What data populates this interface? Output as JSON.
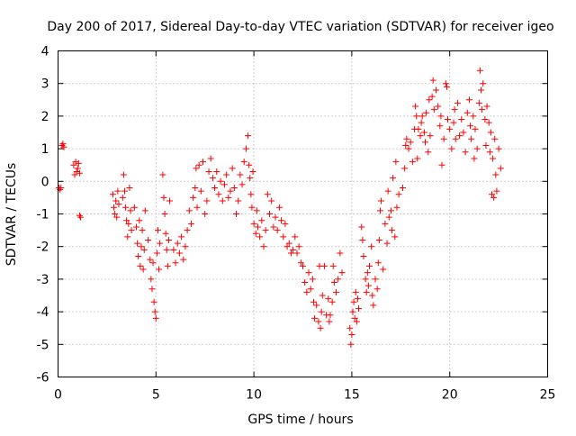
{
  "chart_data": {
    "type": "scatter",
    "title": "Day 200 of 2017, Sidereal Day-to-day VTEC variation (SDTVAR) for receiver igeo",
    "xlabel": "GPS time / hours",
    "ylabel": "SDTVAR / TECUs",
    "xlim": [
      0,
      25
    ],
    "ylim": [
      -6,
      4
    ],
    "xticks": [
      0,
      5,
      10,
      15,
      20,
      25
    ],
    "yticks": [
      -6,
      -5,
      -4,
      -3,
      -2,
      -1,
      0,
      1,
      2,
      3,
      4
    ],
    "xtick_labels": [
      "0",
      "5",
      "10",
      "15",
      "20",
      "25"
    ],
    "ytick_labels": [
      "-6",
      "-5",
      "-4",
      "-3",
      "-2",
      "-1",
      "0",
      "1",
      "2",
      "3",
      "4"
    ],
    "grid": true,
    "marker": "+",
    "color": "#ff0000",
    "series": [
      {
        "name": "igeo",
        "points": [
          [
            0.05,
            -0.2
          ],
          [
            0.1,
            -0.25
          ],
          [
            0.15,
            -0.2
          ],
          [
            0.2,
            1.1
          ],
          [
            0.25,
            1.15
          ],
          [
            0.3,
            1.05
          ],
          [
            0.8,
            0.5
          ],
          [
            0.85,
            0.2
          ],
          [
            0.9,
            0.6
          ],
          [
            0.95,
            0.3
          ],
          [
            1.0,
            0.4
          ],
          [
            1.05,
            0.55
          ],
          [
            1.1,
            0.25
          ],
          [
            1.15,
            -1.1
          ],
          [
            1.1,
            -1.05
          ],
          [
            2.8,
            -0.4
          ],
          [
            2.85,
            -0.8
          ],
          [
            2.9,
            -1.0
          ],
          [
            2.95,
            -0.6
          ],
          [
            3.0,
            -1.1
          ],
          [
            3.05,
            -0.3
          ],
          [
            3.1,
            -0.7
          ],
          [
            3.3,
            -0.5
          ],
          [
            3.35,
            0.2
          ],
          [
            3.4,
            -0.3
          ],
          [
            3.45,
            -0.8
          ],
          [
            3.5,
            -1.2
          ],
          [
            3.55,
            -1.7
          ],
          [
            3.6,
            -1.3
          ],
          [
            3.65,
            -0.2
          ],
          [
            3.7,
            -0.9
          ],
          [
            3.75,
            -1.5
          ],
          [
            3.9,
            -0.8
          ],
          [
            4.0,
            -1.4
          ],
          [
            4.05,
            -1.9
          ],
          [
            4.1,
            -2.3
          ],
          [
            4.15,
            -1.2
          ],
          [
            4.2,
            -2.6
          ],
          [
            4.25,
            -2.0
          ],
          [
            4.3,
            -1.5
          ],
          [
            4.35,
            -2.7
          ],
          [
            4.4,
            -2.1
          ],
          [
            4.45,
            -0.9
          ],
          [
            4.6,
            -1.8
          ],
          [
            4.7,
            -2.4
          ],
          [
            4.75,
            -3.0
          ],
          [
            4.8,
            -3.3
          ],
          [
            4.85,
            -2.5
          ],
          [
            4.9,
            -3.7
          ],
          [
            4.95,
            -4.0
          ],
          [
            5.0,
            -4.2
          ],
          [
            5.05,
            -2.2
          ],
          [
            5.1,
            -1.5
          ],
          [
            5.15,
            -2.7
          ],
          [
            5.2,
            -1.9
          ],
          [
            5.35,
            0.2
          ],
          [
            5.4,
            -0.5
          ],
          [
            5.45,
            -1.0
          ],
          [
            5.5,
            -1.6
          ],
          [
            5.55,
            -2.1
          ],
          [
            5.6,
            -2.6
          ],
          [
            5.65,
            -1.8
          ],
          [
            5.7,
            -0.6
          ],
          [
            5.9,
            -2.1
          ],
          [
            6.0,
            -2.5
          ],
          [
            6.1,
            -1.9
          ],
          [
            6.2,
            -2.2
          ],
          [
            6.3,
            -1.7
          ],
          [
            6.4,
            -2.4
          ],
          [
            6.5,
            -2.0
          ],
          [
            6.6,
            -1.5
          ],
          [
            6.7,
            -0.9
          ],
          [
            6.8,
            -1.3
          ],
          [
            6.9,
            -0.5
          ],
          [
            7.0,
            -0.2
          ],
          [
            7.05,
            0.4
          ],
          [
            7.1,
            -0.8
          ],
          [
            7.2,
            0.5
          ],
          [
            7.3,
            -0.3
          ],
          [
            7.4,
            0.6
          ],
          [
            7.5,
            -1.0
          ],
          [
            7.6,
            -0.6
          ],
          [
            7.7,
            0.3
          ],
          [
            7.8,
            0.7
          ],
          [
            7.9,
            0.1
          ],
          [
            8.0,
            -0.2
          ],
          [
            8.1,
            0.3
          ],
          [
            8.2,
            -0.4
          ],
          [
            8.3,
            0.0
          ],
          [
            8.4,
            -0.6
          ],
          [
            8.5,
            -0.1
          ],
          [
            8.6,
            0.2
          ],
          [
            8.7,
            -0.5
          ],
          [
            8.8,
            -0.3
          ],
          [
            8.9,
            0.4
          ],
          [
            9.0,
            -0.2
          ],
          [
            9.1,
            -1.0
          ],
          [
            9.2,
            -0.6
          ],
          [
            9.3,
            0.2
          ],
          [
            9.4,
            -0.1
          ],
          [
            9.5,
            0.6
          ],
          [
            9.6,
            1.0
          ],
          [
            9.7,
            1.4
          ],
          [
            9.75,
            0.5
          ],
          [
            9.8,
            0.1
          ],
          [
            9.85,
            -0.4
          ],
          [
            9.9,
            -0.8
          ],
          [
            9.95,
            0.3
          ],
          [
            10.0,
            -1.3
          ],
          [
            10.1,
            -1.6
          ],
          [
            10.15,
            -0.9
          ],
          [
            10.2,
            -1.4
          ],
          [
            10.3,
            -1.7
          ],
          [
            10.4,
            -1.2
          ],
          [
            10.5,
            -2.0
          ],
          [
            10.6,
            -1.5
          ],
          [
            10.7,
            -0.4
          ],
          [
            10.8,
            -1.0
          ],
          [
            10.9,
            -0.6
          ],
          [
            11.0,
            -1.4
          ],
          [
            11.1,
            -1.1
          ],
          [
            11.2,
            -1.5
          ],
          [
            11.3,
            -0.8
          ],
          [
            11.4,
            -1.2
          ],
          [
            11.5,
            -1.7
          ],
          [
            11.6,
            -1.3
          ],
          [
            11.7,
            -2.0
          ],
          [
            11.8,
            -1.9
          ],
          [
            11.9,
            -2.2
          ],
          [
            12.0,
            -2.1
          ],
          [
            12.1,
            -1.7
          ],
          [
            12.2,
            -2.2
          ],
          [
            12.3,
            -2.0
          ],
          [
            12.4,
            -2.5
          ],
          [
            12.5,
            -2.6
          ],
          [
            12.6,
            -3.1
          ],
          [
            12.7,
            -3.4
          ],
          [
            12.8,
            -2.8
          ],
          [
            12.9,
            -3.3
          ],
          [
            13.0,
            -3.0
          ],
          [
            13.05,
            -3.7
          ],
          [
            13.1,
            -4.2
          ],
          [
            13.2,
            -3.8
          ],
          [
            13.3,
            -4.3
          ],
          [
            13.35,
            -2.6
          ],
          [
            13.4,
            -4.5
          ],
          [
            13.45,
            -4.0
          ],
          [
            13.5,
            -3.5
          ],
          [
            13.6,
            -2.6
          ],
          [
            13.7,
            -4.1
          ],
          [
            13.8,
            -3.6
          ],
          [
            13.85,
            -4.3
          ],
          [
            13.9,
            -4.1
          ],
          [
            14.0,
            -3.7
          ],
          [
            14.05,
            -2.6
          ],
          [
            14.1,
            -3.1
          ],
          [
            14.2,
            -3.4
          ],
          [
            14.3,
            -3.0
          ],
          [
            14.4,
            -2.2
          ],
          [
            14.5,
            -2.8
          ],
          [
            14.9,
            -4.5
          ],
          [
            14.95,
            -5.0
          ],
          [
            15.0,
            -4.7
          ],
          [
            15.05,
            -4.0
          ],
          [
            15.1,
            -3.7
          ],
          [
            15.15,
            -4.2
          ],
          [
            15.2,
            -3.4
          ],
          [
            15.25,
            -4.3
          ],
          [
            15.3,
            -3.6
          ],
          [
            15.35,
            -3.9
          ],
          [
            15.5,
            -1.4
          ],
          [
            15.55,
            -1.8
          ],
          [
            15.6,
            -2.3
          ],
          [
            15.7,
            -3.0
          ],
          [
            15.75,
            -3.4
          ],
          [
            15.8,
            -2.8
          ],
          [
            15.85,
            -3.2
          ],
          [
            15.9,
            -2.6
          ],
          [
            16.0,
            -2.0
          ],
          [
            16.05,
            -3.5
          ],
          [
            16.1,
            -3.8
          ],
          [
            16.2,
            -3.0
          ],
          [
            16.3,
            -3.3
          ],
          [
            16.35,
            -2.5
          ],
          [
            16.4,
            -1.8
          ],
          [
            16.45,
            -0.9
          ],
          [
            16.5,
            -0.6
          ],
          [
            16.6,
            -2.7
          ],
          [
            16.7,
            -1.3
          ],
          [
            16.8,
            -1.9
          ],
          [
            16.85,
            -0.3
          ],
          [
            16.9,
            -1.1
          ],
          [
            17.0,
            -0.9
          ],
          [
            17.05,
            -1.5
          ],
          [
            17.1,
            0.1
          ],
          [
            17.2,
            -1.7
          ],
          [
            17.25,
            0.6
          ],
          [
            17.3,
            -0.8
          ],
          [
            17.4,
            -0.4
          ],
          [
            17.6,
            -0.2
          ],
          [
            17.7,
            0.4
          ],
          [
            17.75,
            1.1
          ],
          [
            17.8,
            1.3
          ],
          [
            17.9,
            1.0
          ],
          [
            18.0,
            1.2
          ],
          [
            18.1,
            0.6
          ],
          [
            18.2,
            1.6
          ],
          [
            18.25,
            2.3
          ],
          [
            18.3,
            2.0
          ],
          [
            18.35,
            0.7
          ],
          [
            18.4,
            1.6
          ],
          [
            18.5,
            1.4
          ],
          [
            18.55,
            1.8
          ],
          [
            18.6,
            2.0
          ],
          [
            18.7,
            1.5
          ],
          [
            18.75,
            1.2
          ],
          [
            18.8,
            2.1
          ],
          [
            18.9,
            0.9
          ],
          [
            18.95,
            2.5
          ],
          [
            19.0,
            1.4
          ],
          [
            19.1,
            2.6
          ],
          [
            19.15,
            3.1
          ],
          [
            19.2,
            2.2
          ],
          [
            19.3,
            2.8
          ],
          [
            19.4,
            2.3
          ],
          [
            19.5,
            1.7
          ],
          [
            19.55,
            2.0
          ],
          [
            19.6,
            0.5
          ],
          [
            19.7,
            1.3
          ],
          [
            19.8,
            3.0
          ],
          [
            19.85,
            2.9
          ],
          [
            19.9,
            1.9
          ],
          [
            20.0,
            1.6
          ],
          [
            20.1,
            1.0
          ],
          [
            20.2,
            1.8
          ],
          [
            20.25,
            2.2
          ],
          [
            20.3,
            1.3
          ],
          [
            20.4,
            2.4
          ],
          [
            20.5,
            1.4
          ],
          [
            20.6,
            1.9
          ],
          [
            20.7,
            1.5
          ],
          [
            20.8,
            0.9
          ],
          [
            20.9,
            2.1
          ],
          [
            21.0,
            2.5
          ],
          [
            21.05,
            1.7
          ],
          [
            21.1,
            1.3
          ],
          [
            21.2,
            2.0
          ],
          [
            21.25,
            0.7
          ],
          [
            21.3,
            1.6
          ],
          [
            21.4,
            1.0
          ],
          [
            21.5,
            2.4
          ],
          [
            21.55,
            3.4
          ],
          [
            21.6,
            2.8
          ],
          [
            21.65,
            2.2
          ],
          [
            21.7,
            3.0
          ],
          [
            21.8,
            1.9
          ],
          [
            21.85,
            1.1
          ],
          [
            21.9,
            2.3
          ],
          [
            22.0,
            1.8
          ],
          [
            22.05,
            0.9
          ],
          [
            22.1,
            1.5
          ],
          [
            22.15,
            -0.4
          ],
          [
            22.2,
            0.7
          ],
          [
            22.25,
            -0.5
          ],
          [
            22.3,
            1.3
          ],
          [
            22.35,
            0.2
          ],
          [
            22.4,
            -0.3
          ],
          [
            22.5,
            1.0
          ],
          [
            22.6,
            0.4
          ]
        ]
      }
    ]
  }
}
